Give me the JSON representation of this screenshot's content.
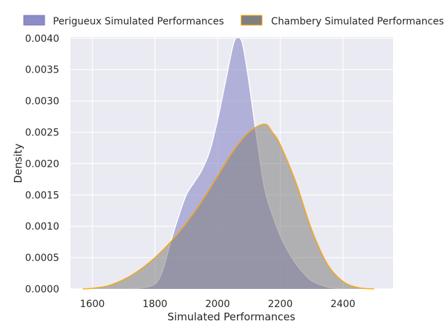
{
  "chart_data": {
    "type": "area",
    "title": "",
    "xlabel": "Simulated Performances",
    "ylabel": "Density",
    "xlim": [
      1530,
      2560
    ],
    "ylim": [
      0,
      0.00402
    ],
    "x_ticks": [
      "1600",
      "1800",
      "2000",
      "2200",
      "2400"
    ],
    "y_ticks": [
      "0.0000",
      "0.0005",
      "0.0010",
      "0.0015",
      "0.0020",
      "0.0025",
      "0.0030",
      "0.0035",
      "0.0040"
    ],
    "grid": true,
    "legend_position": "top",
    "series": [
      {
        "name": "Perigueux Simulated Performances",
        "fill_color": "#8c8cc8",
        "line_color": "#ffffff",
        "x": [
          1600,
          1650,
          1700,
          1750,
          1800,
          1825,
          1850,
          1875,
          1900,
          1925,
          1950,
          1975,
          2000,
          2025,
          2050,
          2065,
          2080,
          2100,
          2125,
          2150,
          2175,
          2200,
          2225,
          2250,
          2275,
          2300,
          2350,
          2400,
          2450,
          2500
        ],
        "y": [
          0.0,
          0.0,
          0.0,
          1e-05,
          8e-05,
          0.0003,
          0.00075,
          0.00115,
          0.0015,
          0.0017,
          0.0019,
          0.0022,
          0.0027,
          0.0033,
          0.0039,
          0.00401,
          0.0039,
          0.0033,
          0.0024,
          0.0016,
          0.00118,
          0.00085,
          0.0006,
          0.0004,
          0.00025,
          0.00013,
          3e-05,
          0.0,
          0.0,
          0.0
        ]
      },
      {
        "name": "Chambery Simulated Performances",
        "fill_color": "#7f7f7f",
        "line_color": "#ffa500",
        "x": [
          1570,
          1600,
          1650,
          1700,
          1750,
          1800,
          1850,
          1900,
          1950,
          2000,
          2050,
          2100,
          2150,
          2175,
          2200,
          2250,
          2300,
          2350,
          2400,
          2450,
          2500
        ],
        "y": [
          0.0,
          1e-05,
          5e-05,
          0.00015,
          0.0003,
          0.0005,
          0.00075,
          0.00105,
          0.0014,
          0.0018,
          0.0022,
          0.0025,
          0.00263,
          0.0025,
          0.0023,
          0.0017,
          0.00095,
          0.0004,
          0.00012,
          2e-05,
          0.0
        ]
      }
    ]
  }
}
